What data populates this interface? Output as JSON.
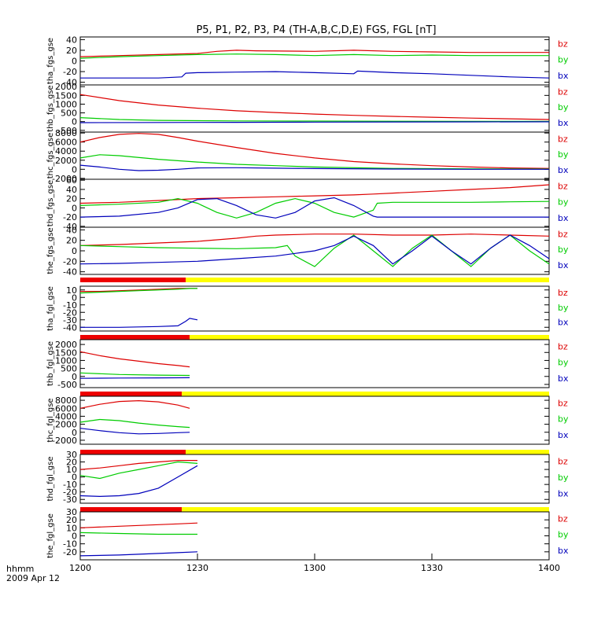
{
  "chart_data": {
    "type": "line",
    "title": "P5, P1, P2, P3, P4 (TH-A,B,C,D,E) FGS, FGL [nT]",
    "time_axis": {
      "label_unit": "hhmm",
      "label_date": "2009 Apr 12",
      "ticks": [
        "1200",
        "1230",
        "1300",
        "1330",
        "1400"
      ],
      "range_minutes": [
        0,
        120
      ]
    },
    "legend_items": [
      "bz",
      "by",
      "bx"
    ],
    "colors": {
      "bz": "#dd0000",
      "by": "#00cc00",
      "bx": "#0000bb",
      "flag_red": "#ee0000",
      "flag_yellow": "#ffff00"
    },
    "panels": [
      {
        "ylabel": "tha_fgs_gse",
        "ylim": [
          -45,
          45
        ],
        "yticks": [
          40,
          20,
          0,
          -20,
          -40
        ],
        "series": [
          {
            "name": "bz",
            "x": [
              0,
              10,
              20,
              30,
              35,
              40,
              45,
              60,
              70,
              80,
              90,
              100,
              110,
              120
            ],
            "y": [
              8,
              10,
              12,
              14,
              18,
              20,
              19,
              18,
              20,
              18,
              17,
              16,
              16,
              16
            ]
          },
          {
            "name": "by",
            "x": [
              0,
              10,
              20,
              30,
              40,
              50,
              60,
              70,
              80,
              90,
              100,
              110,
              120
            ],
            "y": [
              5,
              8,
              10,
              12,
              13,
              12,
              10,
              12,
              10,
              11,
              10,
              10,
              10
            ]
          },
          {
            "name": "bx",
            "x": [
              0,
              10,
              20,
              26,
              27,
              30,
              40,
              50,
              60,
              70,
              71,
              80,
              90,
              100,
              110,
              120
            ],
            "y": [
              -32,
              -32,
              -32,
              -30,
              -23,
              -22,
              -21,
              -20,
              -22,
              -24,
              -19,
              -22,
              -24,
              -27,
              -30,
              -32
            ]
          }
        ]
      },
      {
        "ylabel": "thb_fgs_gse",
        "ylim": [
          -600,
          2100
        ],
        "yticks": [
          2000,
          1500,
          1000,
          500,
          0,
          -500
        ],
        "series": [
          {
            "name": "bz",
            "x": [
              0,
              10,
              20,
              30,
              40,
              50,
              60,
              70,
              80,
              90,
              100,
              110,
              120
            ],
            "y": [
              1550,
              1200,
              950,
              770,
              620,
              520,
              430,
              360,
              300,
              250,
              200,
              160,
              120
            ]
          },
          {
            "name": "by",
            "x": [
              0,
              10,
              20,
              40,
              60,
              80,
              100,
              120
            ],
            "y": [
              230,
              120,
              70,
              40,
              30,
              20,
              15,
              10
            ]
          },
          {
            "name": "bx",
            "x": [
              0,
              20,
              40,
              60,
              80,
              100,
              120
            ],
            "y": [
              -60,
              -50,
              -40,
              -30,
              -20,
              -15,
              -10
            ]
          }
        ]
      },
      {
        "ylabel": "thc_fgs_gse",
        "ylim": [
          -2200,
          8200
        ],
        "yticks": [
          8000,
          6000,
          4000,
          2000,
          0,
          -2000
        ],
        "series": [
          {
            "name": "bz",
            "x": [
              0,
              5,
              10,
              15,
              20,
              25,
              30,
              40,
              50,
              60,
              70,
              80,
              90,
              100,
              110,
              120
            ],
            "y": [
              6000,
              7000,
              7700,
              7900,
              7700,
              7000,
              6200,
              4800,
              3500,
              2500,
              1700,
              1200,
              800,
              500,
              300,
              200
            ]
          },
          {
            "name": "by",
            "x": [
              0,
              5,
              10,
              20,
              30,
              40,
              50,
              60,
              80,
              100,
              120
            ],
            "y": [
              2500,
              3200,
              3000,
              2200,
              1600,
              1100,
              800,
              500,
              200,
              100,
              50
            ]
          },
          {
            "name": "bx",
            "x": [
              0,
              5,
              10,
              15,
              20,
              25,
              30,
              40,
              50,
              60,
              80,
              100,
              120
            ],
            "y": [
              900,
              500,
              0,
              -300,
              -200,
              0,
              300,
              350,
              250,
              150,
              50,
              0,
              0
            ]
          }
        ]
      },
      {
        "ylabel": "thd_fgs_gse",
        "ylim": [
          -42,
          62
        ],
        "yticks": [
          60,
          40,
          20,
          0,
          -20,
          -40
        ],
        "series": [
          {
            "name": "bz",
            "x": [
              0,
              10,
              20,
              30,
              40,
              50,
              60,
              70,
              75,
              80,
              90,
              100,
              110,
              120
            ],
            "y": [
              10,
              12,
              16,
              20,
              22,
              24,
              26,
              28,
              30,
              32,
              36,
              40,
              44,
              50
            ]
          },
          {
            "name": "by",
            "x": [
              0,
              10,
              20,
              25,
              30,
              35,
              40,
              45,
              50,
              55,
              60,
              65,
              70,
              75,
              76,
              80,
              90,
              100,
              110,
              120
            ],
            "y": [
              5,
              8,
              12,
              20,
              10,
              -10,
              -22,
              -10,
              10,
              20,
              10,
              -10,
              -20,
              -5,
              10,
              12,
              12,
              12,
              13,
              14
            ]
          },
          {
            "name": "bx",
            "x": [
              0,
              10,
              20,
              25,
              30,
              35,
              40,
              45,
              50,
              55,
              60,
              65,
              70,
              75,
              76,
              80,
              90,
              100,
              110,
              120
            ],
            "y": [
              -20,
              -18,
              -10,
              0,
              18,
              20,
              5,
              -15,
              -22,
              -10,
              15,
              22,
              5,
              -18,
              -20,
              -20,
              -20,
              -20,
              -20,
              -20
            ]
          }
        ]
      },
      {
        "ylabel": "the_fgs_gse",
        "ylim": [
          -45,
          45
        ],
        "yticks": [
          40,
          20,
          0,
          -20,
          -40
        ],
        "series": [
          {
            "name": "bz",
            "x": [
              0,
              10,
              20,
              30,
              40,
              45,
              50,
              60,
              70,
              80,
              90,
              100,
              110,
              120
            ],
            "y": [
              10,
              12,
              15,
              18,
              24,
              28,
              30,
              32,
              32,
              30,
              30,
              32,
              30,
              28
            ]
          },
          {
            "name": "by",
            "x": [
              0,
              10,
              20,
              30,
              40,
              50,
              53,
              55,
              60,
              65,
              70,
              75,
              80,
              85,
              90,
              95,
              100,
              105,
              110,
              115,
              120
            ],
            "y": [
              10,
              8,
              6,
              5,
              4,
              6,
              10,
              -10,
              -30,
              5,
              30,
              0,
              -30,
              5,
              30,
              0,
              -30,
              5,
              30,
              0,
              -25
            ]
          },
          {
            "name": "bx",
            "x": [
              0,
              10,
              20,
              30,
              40,
              50,
              55,
              60,
              65,
              70,
              75,
              80,
              85,
              90,
              95,
              100,
              105,
              110,
              115,
              120
            ],
            "y": [
              -25,
              -24,
              -22,
              -20,
              -15,
              -10,
              -5,
              0,
              10,
              28,
              10,
              -25,
              0,
              28,
              0,
              -25,
              5,
              30,
              10,
              -15
            ]
          }
        ]
      },
      {
        "ylabel": "tha_fgl_gse",
        "ylim": [
          -45,
          15
        ],
        "yticks": [
          10,
          0,
          -10,
          -20,
          -30,
          -40
        ],
        "flag_split_minutes": 27,
        "series": [
          {
            "name": "bz",
            "x": [
              0,
              5,
              10,
              15,
              20,
              25,
              28,
              30
            ],
            "y": [
              8,
              8,
              9,
              10,
              11,
              12,
              12,
              12
            ]
          },
          {
            "name": "by",
            "x": [
              0,
              5,
              10,
              15,
              20,
              25,
              28,
              30
            ],
            "y": [
              6,
              7,
              8,
              9,
              10,
              11,
              12,
              12
            ]
          },
          {
            "name": "bx",
            "x": [
              0,
              10,
              20,
              25,
              27,
              28,
              30
            ],
            "y": [
              -40,
              -40,
              -39,
              -38,
              -32,
              -28,
              -30
            ]
          }
        ]
      },
      {
        "ylabel": "thb_fgl_gse",
        "ylim": [
          -700,
          2300
        ],
        "yticks": [
          2000,
          1500,
          1000,
          500,
          0,
          -500
        ],
        "flag_split_minutes": 28,
        "series": [
          {
            "name": "bz",
            "x": [
              0,
              5,
              10,
              15,
              20,
              25,
              28
            ],
            "y": [
              1550,
              1300,
              1100,
              950,
              800,
              680,
              600
            ]
          },
          {
            "name": "by",
            "x": [
              0,
              10,
              20,
              28
            ],
            "y": [
              220,
              120,
              80,
              60
            ]
          },
          {
            "name": "bx",
            "x": [
              0,
              10,
              20,
              28
            ],
            "y": [
              -120,
              -100,
              -90,
              -80
            ]
          }
        ]
      },
      {
        "ylabel": "thc_fgl_gse",
        "ylim": [
          -3000,
          9000
        ],
        "yticks": [
          8000,
          6000,
          4000,
          2000,
          0,
          -2000
        ],
        "flag_split_minutes": 26,
        "series": [
          {
            "name": "bz",
            "x": [
              0,
              5,
              10,
              15,
              20,
              25,
              28
            ],
            "y": [
              6000,
              7000,
              7700,
              7900,
              7600,
              6800,
              6000
            ]
          },
          {
            "name": "by",
            "x": [
              0,
              5,
              10,
              15,
              20,
              25,
              28
            ],
            "y": [
              2500,
              3200,
              2900,
              2300,
              1800,
              1400,
              1200
            ]
          },
          {
            "name": "bx",
            "x": [
              0,
              5,
              10,
              15,
              20,
              25,
              28
            ],
            "y": [
              1000,
              400,
              -100,
              -400,
              -300,
              -100,
              0
            ]
          }
        ]
      },
      {
        "ylabel": "thd_fgl_gse",
        "ylim": [
          -35,
          30
        ],
        "yticks": [
          30,
          20,
          10,
          0,
          -10,
          -20,
          -30
        ],
        "flag_split_minutes": 27,
        "series": [
          {
            "name": "bz",
            "x": [
              0,
              5,
              10,
              15,
              20,
              25,
              30
            ],
            "y": [
              10,
              12,
              15,
              18,
              20,
              22,
              22
            ]
          },
          {
            "name": "by",
            "x": [
              0,
              5,
              10,
              15,
              20,
              25,
              30
            ],
            "y": [
              2,
              -2,
              5,
              10,
              15,
              20,
              18
            ]
          },
          {
            "name": "bx",
            "x": [
              0,
              5,
              10,
              15,
              20,
              25,
              30
            ],
            "y": [
              -25,
              -26,
              -25,
              -22,
              -15,
              0,
              15
            ]
          }
        ]
      },
      {
        "ylabel": "the_fgl_gse",
        "ylim": [
          -30,
          30
        ],
        "yticks": [
          30,
          20,
          10,
          0,
          -10,
          -20
        ],
        "flag_split_minutes": 26,
        "series": [
          {
            "name": "bz",
            "x": [
              0,
              10,
              20,
              25,
              30
            ],
            "y": [
              10,
              12,
              14,
              15,
              16
            ]
          },
          {
            "name": "by",
            "x": [
              0,
              10,
              20,
              25,
              30
            ],
            "y": [
              4,
              3,
              2,
              2,
              2
            ]
          },
          {
            "name": "bx",
            "x": [
              0,
              10,
              20,
              25,
              30
            ],
            "y": [
              -25,
              -24,
              -22,
              -21,
              -20
            ]
          }
        ]
      }
    ]
  }
}
